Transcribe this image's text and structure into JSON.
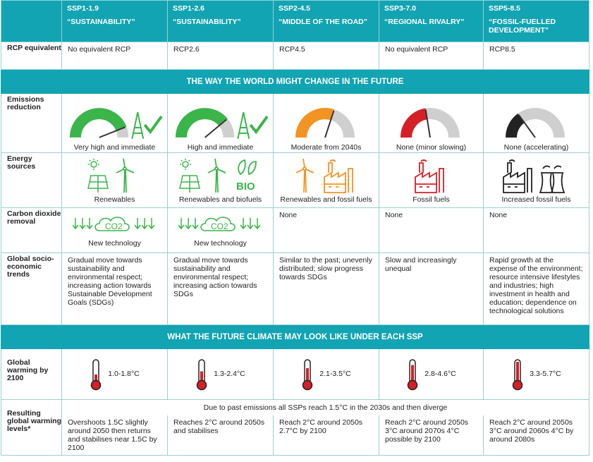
{
  "columns": [
    {
      "code": "SSP1-1.9",
      "name": "“SUSTAINABILITY”",
      "rcp": "No equivalent RCP",
      "emissions": "Very high and immediate",
      "gauge": 0.88,
      "gauge_color": "#3bb54a",
      "energy": "Renewables",
      "energy_icons": [
        "sun-panel-icon",
        "wind-turbine-icon"
      ],
      "cdr": "New technology",
      "cdr_icon": true,
      "trends": "Gradual move towards sustainability and environmental respect; increasing action towards Sustainable Development Goals (SDGs)",
      "warming": "1.0-1.8°C",
      "warming_level": 0.3,
      "resulting": "Overshoots 1.5C slightly around 2050 then returns and stabilises near 1.5C by 2100"
    },
    {
      "code": "SSP1-2.6",
      "name": "“SUSTAINABILITY”",
      "rcp": "RCP2.6",
      "emissions": "High and immediate",
      "gauge": 0.78,
      "gauge_color": "#3bb54a",
      "energy": "Renewables and biofuels",
      "energy_icons": [
        "sun-panel-icon",
        "wind-turbine-icon",
        "bio-icon"
      ],
      "cdr": "New technology",
      "cdr_icon": true,
      "trends": "Gradual move towards sustainability and environmental respect; increasing action towards SDGs",
      "warming": "1.3-2.4°C",
      "warming_level": 0.45,
      "resulting": "Reaches 2°C around 2050s and stabilises"
    },
    {
      "code": "SSP2-4.5",
      "name": "“MIDDLE OF THE ROAD”",
      "rcp": "RCP4.5",
      "emissions": "Moderate from 2040s",
      "gauge": 0.6,
      "gauge_color": "#f39322",
      "energy": "Renewables and fossil fuels",
      "energy_icons": [
        "wind-turbine-icon",
        "factory-icon"
      ],
      "cdr": "None",
      "cdr_icon": false,
      "trends": "Similar to the past; unevenly distributed; slow progress towards SDGs",
      "warming": "2.1-3.5°C",
      "warming_level": 0.6,
      "resulting": "Reach 2°C around 2050s 2.7°C by 2100"
    },
    {
      "code": "SSP3-7.0",
      "name": "“REGIONAL RIVALRY”",
      "rcp": "No equivalent RCP",
      "emissions": "None (minor slowing)",
      "gauge": 0.45,
      "gauge_color": "#d42027",
      "energy": "Fossil fuels",
      "energy_icons": [
        "factory-icon"
      ],
      "cdr": "None",
      "cdr_icon": false,
      "trends": "Slow and increasingly unequal",
      "warming": "2.8-4.6°C",
      "warming_level": 0.75,
      "resulting": "Reach 2°C around 2050s 3°C around 2070s 4°C possible by 2100"
    },
    {
      "code": "SSP5-8.5",
      "name": "“FOSSIL-FUELLED DEVELOPMENT”",
      "rcp": "RCP8.5",
      "emissions": "None (accelerating)",
      "gauge": 0.3,
      "gauge_color": "#222222",
      "energy": "Increased fossil fuels",
      "energy_icons": [
        "factory-icon",
        "power-plant-icon"
      ],
      "cdr": "None",
      "cdr_icon": false,
      "trends": "Rapid growth at the expense of the environment; resource intensive lifestyles and industries; high investment in health and education; dependence on technological solutions",
      "warming": "3.3-5.7°C",
      "warming_level": 0.9,
      "resulting": "Reach 2°C around 2050s 3°C around 2060s 4°C by around 2080s"
    }
  ],
  "row_labels": {
    "rcp": "RCP equivalent",
    "emissions": "Emissions reduction",
    "energy": "Energy sources",
    "cdr": "Carbon dioxide removal",
    "trends": "Global socio-economic trends",
    "warming": "Global warming by 2100",
    "resulting": "Resulting global warming levels*"
  },
  "band1": "THE WAY THE WORLD MIGHT CHANGE IN THE FUTURE",
  "band2": "WHAT THE FUTURE CLIMATE MAY LOOK LIKE UNDER EACH SSP",
  "resulting_note": "Due to past emissions all SSPs reach 1.5°C in the 2030s and then diverge",
  "cdr_badge": "CO2",
  "bio_badge": "BIO",
  "colors": {
    "teal": "#12a4b2",
    "green": "#3bb54a",
    "orange": "#f39322",
    "red": "#d42027",
    "grey": "#cfcfcf",
    "thermo_red": "#d42027"
  }
}
